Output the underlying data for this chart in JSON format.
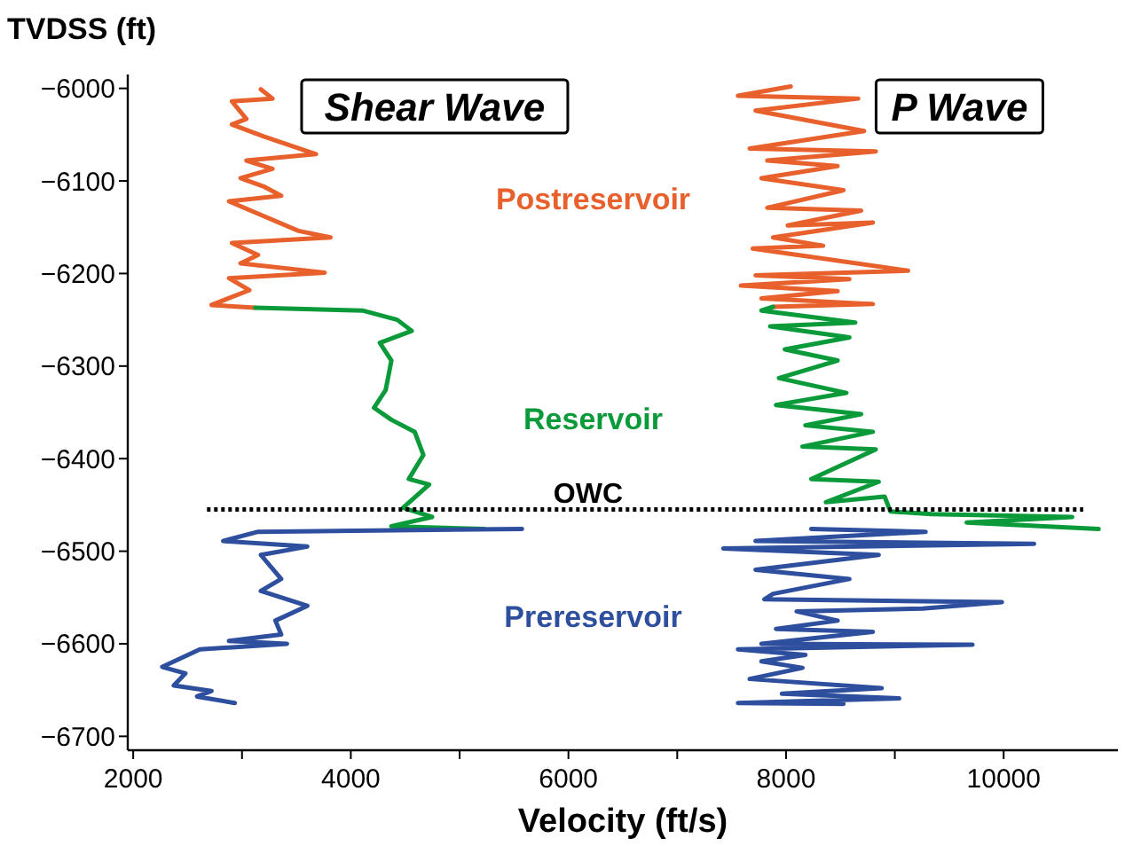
{
  "chart_data": {
    "type": "line",
    "xlabel": "Velocity (ft/s)",
    "ylabel": "TVDSS (ft)",
    "annotations": [
      "Shear Wave",
      "P Wave"
    ],
    "xlim": [
      1950,
      11050
    ],
    "xticks": [
      2000,
      {
        "value": 3000,
        "label": null
      },
      4000,
      {
        "value": 5000,
        "label": null
      },
      6000,
      {
        "value": 7000,
        "label": null
      },
      8000,
      {
        "value": 9000,
        "label": null
      },
      10000
    ],
    "ylim": [
      -6715,
      -5985
    ],
    "yticks": [
      -6000,
      -6100,
      -6200,
      -6300,
      -6400,
      -6500,
      -6600,
      -6700
    ],
    "ref_lines": [
      {
        "axis": "y",
        "value": -6455,
        "label": "OWC",
        "color": "#000000",
        "line_style": "dotted"
      }
    ],
    "series": [
      {
        "name": "Postreservoir",
        "color": "#e8602c",
        "x": [
          3173,
          3280,
          2907,
          3040,
          2907,
          3200,
          3680,
          3040,
          3280,
          2987,
          3200,
          3360,
          2880,
          3520,
          3813,
          2907,
          3147,
          2987,
          3760,
          2880,
          3067,
          2720,
          3120
        ],
        "values": [
          -6001,
          -6011,
          -6014,
          -6033,
          -6039,
          -6052,
          -6071,
          -6078,
          -6087,
          -6097,
          -6106,
          -6116,
          -6122,
          -6154,
          -6161,
          -6167,
          -6180,
          -6189,
          -6199,
          -6205,
          -6218,
          -6234,
          -6237
        ]
      },
      {
        "name": "Reservoir",
        "color": "#0a9a3a",
        "x": [
          3120,
          4107,
          4427,
          4560,
          4267,
          4373,
          4320,
          4213,
          4373,
          4587,
          4667,
          4533,
          4720,
          4480,
          4747,
          4373,
          5227
        ],
        "values": [
          -6237,
          -6240,
          -6250,
          -6262,
          -6275,
          -6294,
          -6326,
          -6345,
          -6358,
          -6371,
          -6396,
          -6422,
          -6428,
          -6453,
          -6463,
          -6473,
          -6476
        ]
      },
      {
        "name": "Prereservoir",
        "color": "#2e4e9e",
        "x": [
          5573,
          3147,
          2827,
          3600,
          3173,
          3360,
          3173,
          3600,
          3307,
          3360,
          2880,
          3413,
          2613,
          2267,
          2480,
          2373,
          2720,
          2587,
          2933
        ],
        "values": [
          -6476,
          -6479,
          -6489,
          -6495,
          -6504,
          -6530,
          -6543,
          -6559,
          -6575,
          -6590,
          -6597,
          -6600,
          -6606,
          -6625,
          -6632,
          -6645,
          -6651,
          -6657,
          -6664
        ]
      },
      {
        "color": "#e8602c",
        "x": [
          8043,
          7558,
          8663,
          7720,
          8717,
          7666,
          8825,
          7828,
          8474,
          7774,
          8528,
          7828,
          8690,
          8016,
          8798,
          7881,
          8340,
          7693,
          9121,
          7720,
          8582,
          7585,
          8474,
          7774,
          8798,
          7881
        ],
        "values": [
          -5998,
          -6008,
          -6011,
          -6024,
          -6046,
          -6065,
          -6068,
          -6078,
          -6084,
          -6097,
          -6110,
          -6129,
          -6132,
          -6148,
          -6145,
          -6161,
          -6170,
          -6173,
          -6197,
          -6202,
          -6206,
          -6213,
          -6219,
          -6227,
          -6233,
          -6236
        ]
      },
      {
        "color": "#0a9a3a",
        "x": [
          7881,
          7774,
          8636,
          7854,
          8582,
          7989,
          8474,
          7935,
          8555,
          7908,
          8690,
          8178,
          8798,
          8151,
          8825,
          8232,
          8852,
          8367,
          8906,
          8959,
          9337,
          10630,
          9660,
          10873
        ],
        "values": [
          -6236,
          -6240,
          -6253,
          -6257,
          -6269,
          -6282,
          -6294,
          -6313,
          -6329,
          -6342,
          -6352,
          -6364,
          -6371,
          -6387,
          -6390,
          -6422,
          -6425,
          -6447,
          -6441,
          -6457,
          -6460,
          -6463,
          -6469,
          -6476
        ]
      },
      {
        "color": "#2e4e9e",
        "x": [
          8232,
          9283,
          7720,
          10280,
          7423,
          8852,
          7720,
          8582,
          7881,
          7801,
          9984,
          9256,
          8097,
          8474,
          7908,
          8798,
          7774,
          9714,
          7558,
          8178,
          7774,
          8151,
          7666,
          8879,
          7962,
          9040,
          7558,
          8528
        ],
        "values": [
          -6476,
          -6479,
          -6489,
          -6492,
          -6497,
          -6504,
          -6520,
          -6530,
          -6546,
          -6552,
          -6555,
          -6562,
          -6565,
          -6575,
          -6584,
          -6587,
          -6600,
          -6601,
          -6606,
          -6612,
          -6619,
          -6626,
          -6638,
          -6648,
          -6654,
          -6659,
          -6664,
          -6665
        ]
      }
    ]
  }
}
